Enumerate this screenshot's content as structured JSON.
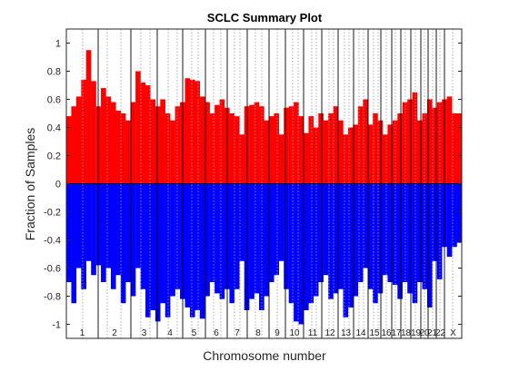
{
  "chart_data": {
    "type": "bar",
    "title": "SCLC Summary Plot",
    "xlabel": "Chromosome number",
    "ylabel": "Fraction of Samples",
    "ylim": [
      -1.1,
      1.1
    ],
    "yticks": [
      -1,
      -0.8,
      -0.6,
      -0.4,
      -0.2,
      0,
      0.2,
      0.4,
      0.6,
      0.8,
      1
    ],
    "ytick_labels": [
      "-1",
      "-0.8",
      "-0.6",
      "-0.4",
      "-0.2",
      "0",
      "0.2",
      "0.4",
      "0.6",
      "0.8",
      "1"
    ],
    "grid": false,
    "series": [
      {
        "color": "#ff0000",
        "values": [
          0.48,
          0.55,
          0.62,
          0.74,
          0.95,
          0.73,
          0.55,
          0.68,
          0.62,
          0.58,
          0.52,
          0.5,
          0.45,
          0.58,
          0.8,
          0.72,
          0.7,
          0.6,
          0.55,
          0.6,
          0.5,
          0.45,
          0.55,
          0.58,
          0.75,
          0.74,
          0.73,
          0.62,
          0.58,
          0.5,
          0.56,
          0.6,
          0.54,
          0.5,
          0.48,
          0.35,
          0.55,
          0.56,
          0.58,
          0.55,
          0.45,
          0.48,
          0.5,
          0.35,
          0.54,
          0.55,
          0.58,
          0.48,
          0.36,
          0.48,
          0.4,
          0.5,
          0.45,
          0.5,
          0.55,
          0.45,
          0.35,
          0.4,
          0.42,
          0.55,
          0.6,
          0.42,
          0.5,
          0.45,
          0.35,
          0.42,
          0.45,
          0.5,
          0.58,
          0.6,
          0.65,
          0.45,
          0.5,
          0.6,
          0.54,
          0.58,
          0.6,
          0.62,
          0.5,
          0.5
        ]
      },
      {
        "color": "#0000ff",
        "values": [
          -0.7,
          -0.85,
          -0.6,
          -0.75,
          -0.55,
          -0.65,
          -0.58,
          -0.7,
          -0.6,
          -0.75,
          -0.65,
          -0.85,
          -0.7,
          -0.8,
          -0.6,
          -0.75,
          -0.95,
          -0.9,
          -0.98,
          -0.85,
          -0.95,
          -0.8,
          -0.75,
          -0.82,
          -0.88,
          -0.95,
          -0.9,
          -0.96,
          -0.8,
          -0.7,
          -0.78,
          -0.82,
          -0.75,
          -0.85,
          -0.75,
          -0.55,
          -0.9,
          -0.82,
          -0.78,
          -0.9,
          -0.8,
          -0.7,
          -0.65,
          -0.55,
          -0.75,
          -0.85,
          -0.98,
          -1.0,
          -0.9,
          -0.85,
          -0.8,
          -0.7,
          -0.65,
          -0.82,
          -0.78,
          -0.75,
          -0.95,
          -0.88,
          -0.8,
          -0.7,
          -0.6,
          -0.75,
          -0.85,
          -0.78,
          -0.65,
          -0.7,
          -0.72,
          -0.82,
          -0.7,
          -0.78,
          -0.85,
          -0.7,
          -0.75,
          -0.88,
          -0.55,
          -0.68,
          -0.45,
          -0.52,
          -0.45,
          -0.42
        ]
      }
    ],
    "chromosome_labels": [
      "1",
      "2",
      "3",
      "4",
      "5",
      "6",
      "7",
      "8",
      "9",
      "10",
      "11",
      "12",
      "13",
      "14",
      "15",
      "16",
      "17",
      "18",
      "19",
      "20",
      "21",
      "22",
      "X"
    ]
  }
}
